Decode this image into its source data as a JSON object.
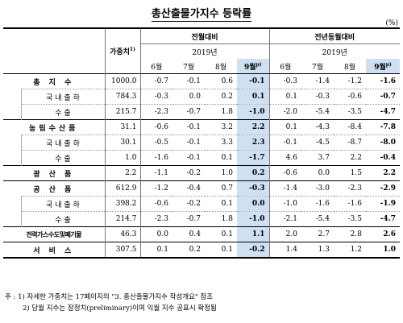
{
  "title": "총산출물가지수 등락률",
  "unit": "(%)",
  "header": {
    "weight": "가중치",
    "weight_sup": "1)",
    "group1": "전월대비",
    "group2": "전년동월대비",
    "year": "2019년",
    "months": [
      "6월",
      "7월",
      "8월",
      "9월"
    ],
    "prelim_sup": "p)"
  },
  "rows": [
    {
      "label": "총 지 수",
      "sub": false,
      "weight": "1000.0",
      "mom": [
        "-0.7",
        "-0.1",
        "0.6",
        "-0.1"
      ],
      "yoy": [
        "-0.3",
        "-1.4",
        "-1.2",
        "-1.6"
      ]
    },
    {
      "label": "국 내 출 하",
      "sub": true,
      "weight": "784.3",
      "mom": [
        "-0.3",
        "0.0",
        "0.2",
        "0.1"
      ],
      "yoy": [
        "0.1",
        "-0.3",
        "-0.6",
        "-0.7"
      ]
    },
    {
      "label": "수 출",
      "sub": true,
      "weight": "215.7",
      "mom": [
        "-2.3",
        "-0.7",
        "1.8",
        "-1.0"
      ],
      "yoy": [
        "-2.0",
        "-5.4",
        "-3.5",
        "-4.7"
      ]
    },
    {
      "label": "농림수산품",
      "sub": false,
      "weight": "31.1",
      "mom": [
        "-0.6",
        "-0.1",
        "3.2",
        "2.2"
      ],
      "yoy": [
        "0.1",
        "-4.3",
        "-8.4",
        "-7.8"
      ]
    },
    {
      "label": "국 내 출 하",
      "sub": true,
      "weight": "30.1",
      "mom": [
        "-0.5",
        "-0.1",
        "3.3",
        "2.3"
      ],
      "yoy": [
        "-0.1",
        "-4.5",
        "-8.7",
        "-8.0"
      ]
    },
    {
      "label": "수 출",
      "sub": true,
      "weight": "1.0",
      "mom": [
        "-1.6",
        "-0.1",
        "0.1",
        "-1.7"
      ],
      "yoy": [
        "4.6",
        "3.7",
        "2.2",
        "-0.4"
      ]
    },
    {
      "label": "광 산 품",
      "sub": false,
      "weight": "2.2",
      "mom": [
        "-1.1",
        "-0.2",
        "1.0",
        "0.2"
      ],
      "yoy": [
        "-0.6",
        "0.0",
        "1.5",
        "2.2"
      ]
    },
    {
      "label": "공 산 품",
      "sub": false,
      "weight": "612.9",
      "mom": [
        "-1.2",
        "-0.4",
        "0.7",
        "-0.3"
      ],
      "yoy": [
        "-1.4",
        "-3.0",
        "-2.3",
        "-2.9"
      ]
    },
    {
      "label": "국 내 출 하",
      "sub": true,
      "weight": "398.2",
      "mom": [
        "-0.6",
        "-0.2",
        "0.1",
        "0.0"
      ],
      "yoy": [
        "-1.0",
        "-1.6",
        "-1.6",
        "-1.9"
      ]
    },
    {
      "label": "수 출",
      "sub": true,
      "weight": "214.7",
      "mom": [
        "-2.3",
        "-0.7",
        "1.8",
        "-1.0"
      ],
      "yoy": [
        "-2.1",
        "-5.4",
        "-3.5",
        "-4.7"
      ]
    },
    {
      "label": "전력가스수도및폐기물",
      "sub": false,
      "weight": "46.3",
      "mom": [
        "0.0",
        "0.4",
        "0.1",
        "1.1"
      ],
      "yoy": [
        "2.0",
        "2.7",
        "2.8",
        "2.6"
      ]
    },
    {
      "label": "서 비 스",
      "sub": false,
      "weight": "307.5",
      "mom": [
        "0.1",
        "0.2",
        "0.1",
        "-0.2"
      ],
      "yoy": [
        "1.4",
        "1.3",
        "1.2",
        "1.0"
      ]
    }
  ],
  "notes": [
    "주 : 1) 자세한 가중치는 17페이지의 \"3. 총산출물가지수 작성개요\" 참조",
    "2) 당월 지수는 잠정치(preliminary)이며 익월 지수 공표시 확정됨"
  ]
}
